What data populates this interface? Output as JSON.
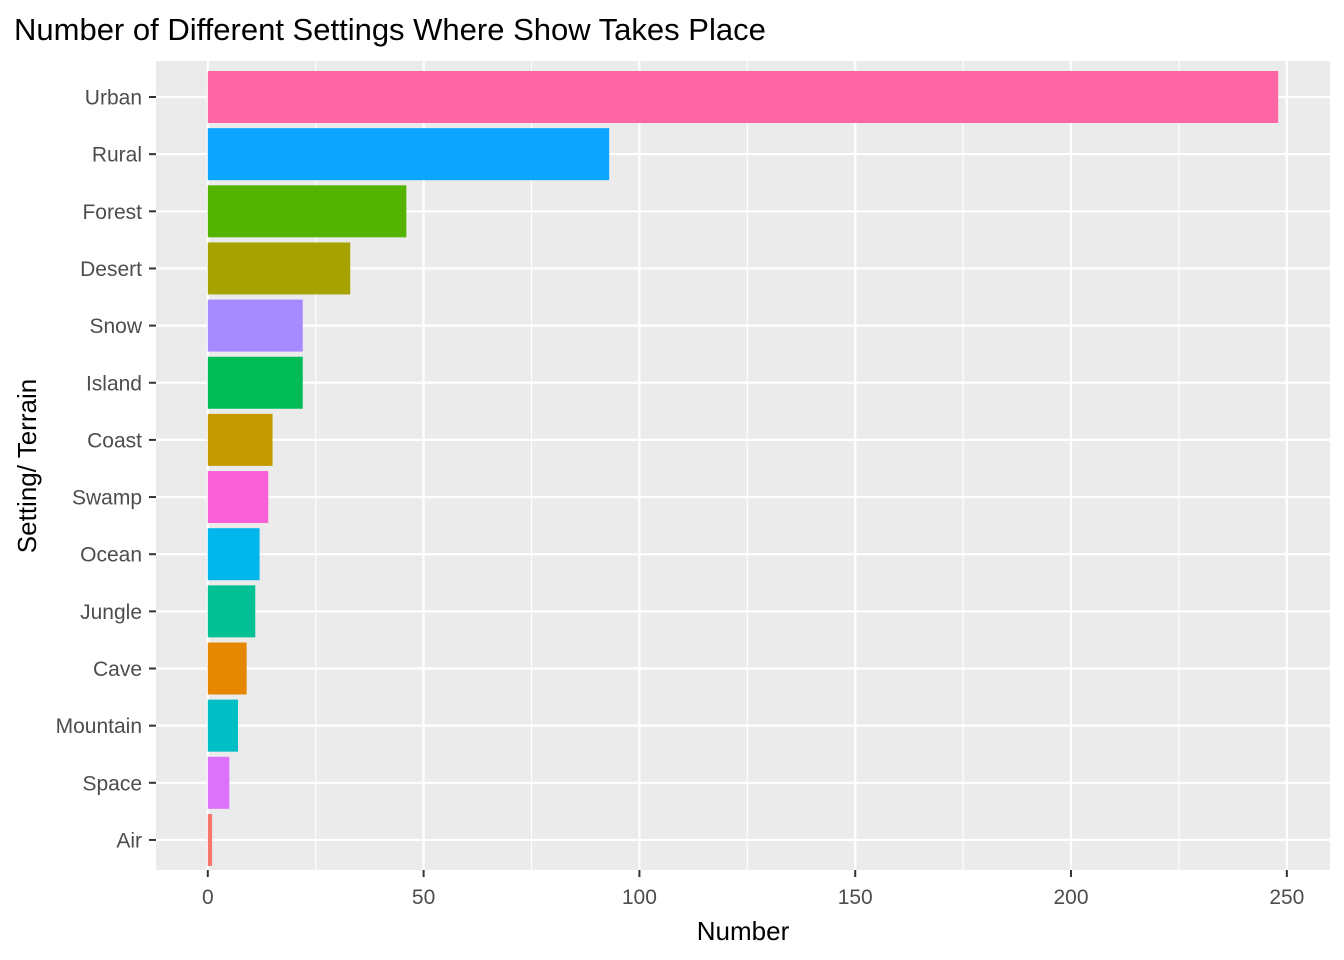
{
  "chart_data": {
    "type": "bar",
    "orientation": "horizontal",
    "title": "Number of Different Settings Where Show Takes Place",
    "xlabel": "Number",
    "ylabel": "Setting/ Terrain",
    "categories": [
      "Urban",
      "Rural",
      "Forest",
      "Desert",
      "Snow",
      "Island",
      "Coast",
      "Swamp",
      "Ocean",
      "Jungle",
      "Cave",
      "Mountain",
      "Space",
      "Air"
    ],
    "values": [
      248,
      93,
      46,
      33,
      22,
      22,
      15,
      14,
      12,
      11,
      9,
      7,
      5,
      1
    ],
    "colors": [
      "#FF67A4",
      "#0CA5FF",
      "#53B400",
      "#A6A300",
      "#A68AFF",
      "#00BC56",
      "#C49A00",
      "#FB61D7",
      "#00B6EB",
      "#00C094",
      "#E58700",
      "#00BFC4",
      "#DC71FA",
      "#F8766D"
    ],
    "xlim": [
      -12,
      260
    ],
    "x_ticks": [
      0,
      50,
      100,
      150,
      200,
      250
    ],
    "x_minor_ticks": [
      25,
      75,
      125,
      175,
      225
    ],
    "panel_background": "#EBEBEB",
    "grid_color": "#FFFFFF",
    "grid": true,
    "legend": "none"
  }
}
